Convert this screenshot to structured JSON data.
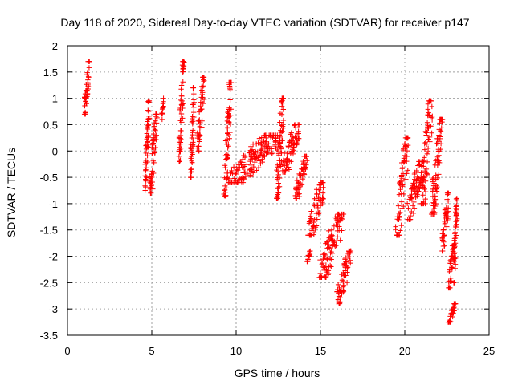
{
  "chart_data": {
    "type": "scatter",
    "title": "Day 118 of 2020, Sidereal Day-to-day VTEC variation (SDTVAR) for receiver p147",
    "xlabel": "GPS time / hours",
    "ylabel": "SDTVAR / TECUs",
    "xlim": [
      0,
      25
    ],
    "ylim": [
      -3.5,
      2
    ],
    "xticks": [
      "0",
      "5",
      "10",
      "15",
      "20",
      "25"
    ],
    "yticks": [
      "-3.5",
      "-3",
      "-2.5",
      "-2",
      "-1.5",
      "-1",
      "-0.5",
      "0",
      "0.5",
      "1",
      "1.5",
      "2"
    ],
    "grid": true,
    "marker": "+",
    "series": [
      {
        "name": "SDTVAR",
        "color": "#ff0000",
        "clusters": [
          {
            "x": [
              1.0,
              1.3
            ],
            "y": [
              0.7,
              1.7
            ]
          },
          {
            "x": [
              4.6,
              4.85
            ],
            "y": [
              -0.75,
              0.95
            ]
          },
          {
            "x": [
              4.9,
              5.3
            ],
            "y": [
              -0.8,
              0.7
            ]
          },
          {
            "x": [
              5.6,
              5.7
            ],
            "y": [
              0.6,
              1.0
            ]
          },
          {
            "x": [
              6.6,
              6.9
            ],
            "y": [
              -0.2,
              1.7
            ]
          },
          {
            "x": [
              7.3,
              7.5
            ],
            "y": [
              -0.5,
              1.2
            ]
          },
          {
            "x": [
              7.7,
              8.1
            ],
            "y": [
              0.0,
              1.4
            ]
          },
          {
            "x": [
              9.3,
              9.7
            ],
            "y": [
              -0.85,
              1.3
            ]
          },
          {
            "x": [
              9.7,
              12.4
            ],
            "y": [
              -0.6,
              0.3
            ]
          },
          {
            "x": [
              12.4,
              12.8
            ],
            "y": [
              -0.9,
              1.0
            ]
          },
          {
            "x": [
              12.8,
              13.7
            ],
            "y": [
              -0.4,
              0.5
            ]
          },
          {
            "x": [
              13.5,
              14.2
            ],
            "y": [
              -0.9,
              -0.1
            ]
          },
          {
            "x": [
              14.2,
              14.4
            ],
            "y": [
              -2.1,
              -1.9
            ]
          },
          {
            "x": [
              14.3,
              15.2
            ],
            "y": [
              -1.6,
              -0.6
            ]
          },
          {
            "x": [
              15.0,
              16.3
            ],
            "y": [
              -2.4,
              -1.2
            ]
          },
          {
            "x": [
              16.0,
              16.8
            ],
            "y": [
              -2.9,
              -1.9
            ]
          },
          {
            "x": [
              19.5,
              20.2
            ],
            "y": [
              -1.6,
              0.25
            ]
          },
          {
            "x": [
              20.2,
              21.0
            ],
            "y": [
              -1.3,
              -0.2
            ]
          },
          {
            "x": [
              21.0,
              21.6
            ],
            "y": [
              -1.0,
              0.95
            ]
          },
          {
            "x": [
              21.6,
              22.2
            ],
            "y": [
              -1.2,
              0.6
            ]
          },
          {
            "x": [
              22.2,
              22.6
            ],
            "y": [
              -1.9,
              -0.8
            ]
          },
          {
            "x": [
              22.6,
              22.9
            ],
            "y": [
              -2.6,
              -1.8
            ]
          },
          {
            "x": [
              22.9,
              23.1
            ],
            "y": [
              -2.5,
              -0.9
            ]
          },
          {
            "x": [
              22.6,
              23.0
            ],
            "y": [
              -3.25,
              -2.9
            ]
          }
        ]
      }
    ]
  }
}
